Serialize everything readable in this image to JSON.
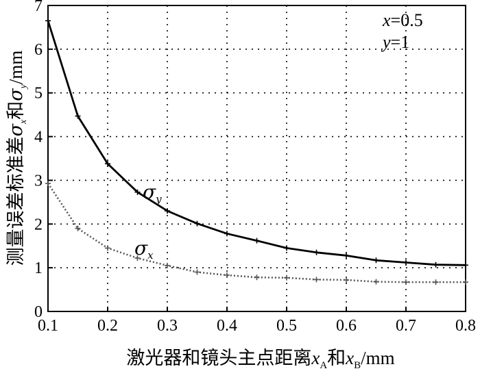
{
  "chart_data": {
    "type": "line",
    "xlabel": "激光器和镜头主点距离xA和xB/mm",
    "xlabel_parts": {
      "prefix": "激光器和镜头主点距离",
      "var_a": "x",
      "sub_a": "A",
      "mid": "和",
      "var_b": "x",
      "sub_b": "B",
      "unit": "/mm"
    },
    "ylabel": "测量误差标准差σx和σy/mm",
    "ylabel_parts": {
      "prefix": "测量误差标准差",
      "sym1": "σ",
      "sub1": "x",
      "mid": "和",
      "sym2": "σ",
      "sub2": "y",
      "unit": "/mm"
    },
    "xlim": [
      0.1,
      0.8
    ],
    "ylim": [
      0,
      7
    ],
    "x_ticks": [
      "0.1",
      "0.2",
      "0.3",
      "0.4",
      "0.5",
      "0.6",
      "0.7",
      "0.8"
    ],
    "y_ticks": [
      "0",
      "1",
      "2",
      "3",
      "4",
      "5",
      "6",
      "7"
    ],
    "grid": true,
    "annotations": [
      {
        "var": "x",
        "value": "=0.5"
      },
      {
        "var": "y",
        "value": "=1"
      }
    ],
    "x": [
      0.1,
      0.15,
      0.2,
      0.25,
      0.3,
      0.35,
      0.4,
      0.45,
      0.5,
      0.55,
      0.6,
      0.65,
      0.7,
      0.75,
      0.8
    ],
    "series": [
      {
        "name": "σy",
        "symbol": "σ",
        "sub": "y",
        "color": "#000000",
        "style": "solid",
        "values": [
          6.65,
          4.47,
          3.38,
          2.73,
          2.3,
          2.01,
          1.78,
          1.62,
          1.45,
          1.35,
          1.28,
          1.17,
          1.12,
          1.07,
          1.06
        ]
      },
      {
        "name": "σx",
        "symbol": "σ",
        "sub": "x",
        "color": "#555555",
        "style": "dotted",
        "values": [
          2.93,
          1.9,
          1.45,
          1.22,
          1.05,
          0.9,
          0.83,
          0.78,
          0.77,
          0.73,
          0.72,
          0.68,
          0.67,
          0.67,
          0.67
        ]
      }
    ]
  }
}
